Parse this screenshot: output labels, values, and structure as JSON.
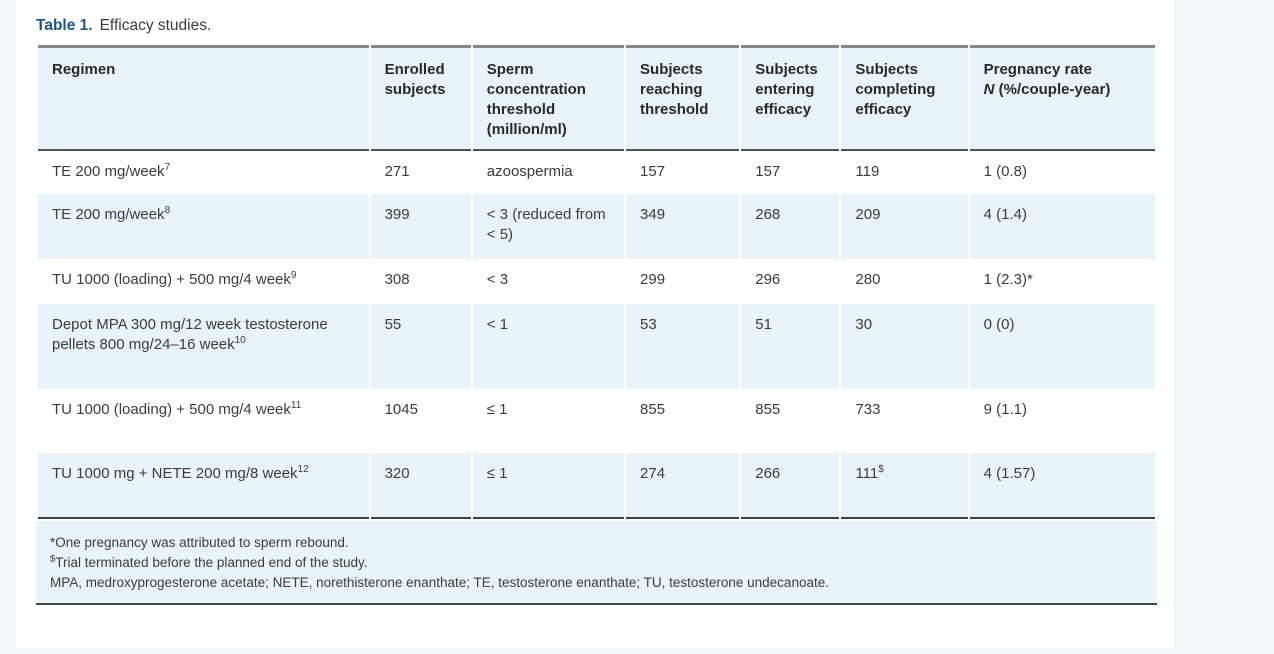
{
  "title": {
    "label": "Table 1.",
    "text": "Efficacy studies."
  },
  "table": {
    "headers": {
      "regimen": "Regimen",
      "enrolled": "Enrolled subjects",
      "threshold": "Sperm concentration threshold (million/ml)",
      "reaching": "Subjects reaching threshold",
      "entering": "Subjects entering efficacy",
      "completing": "Subjects completing efficacy",
      "pregnancy_line1": "Pregnancy rate",
      "pregnancy_n": "N",
      "pregnancy_rest": " (%/couple-year)"
    },
    "rows": [
      {
        "regimen": "TE 200 mg/week",
        "regimen_sup": "7",
        "enrolled": "271",
        "threshold": "azoospermia",
        "reaching": "157",
        "entering": "157",
        "completing": "119",
        "completing_sup": "",
        "pregnancy": "1 (0.8)"
      },
      {
        "regimen": "TE 200 mg/week",
        "regimen_sup": "8",
        "enrolled": "399",
        "threshold": "< 3 (reduced from < 5)",
        "reaching": "349",
        "entering": "268",
        "completing": "209",
        "completing_sup": "",
        "pregnancy": "4 (1.4)"
      },
      {
        "regimen": "TU 1000 (loading) + 500 mg/4 week",
        "regimen_sup": "9",
        "enrolled": "308",
        "threshold": "< 3",
        "reaching": "299",
        "entering": "296",
        "completing": "280",
        "completing_sup": "",
        "pregnancy": "1 (2.3)*"
      },
      {
        "regimen": "Depot MPA 300 mg/12 week testosterone pellets 800 mg/24–16 week",
        "regimen_sup": "10",
        "enrolled": "55",
        "threshold": "< 1",
        "reaching": "53",
        "entering": "51",
        "completing": "30",
        "completing_sup": "",
        "pregnancy": "0 (0)"
      },
      {
        "regimen": "TU 1000 (loading) + 500 mg/4 week",
        "regimen_sup": "11",
        "enrolled": "1045",
        "threshold": "≤ 1",
        "reaching": "855",
        "entering": "855",
        "completing": "733",
        "completing_sup": "",
        "pregnancy": "9 (1.1)"
      },
      {
        "regimen": "TU 1000 mg + NETE 200 mg/8 week",
        "regimen_sup": "12",
        "enrolled": "320",
        "threshold": "≤ 1",
        "reaching": "274",
        "entering": "266",
        "completing": "111",
        "completing_sup": "$",
        "pregnancy": "4 (1.57)"
      }
    ],
    "footnotes": [
      {
        "marker": "*",
        "marker_superscript": false,
        "text": "One pregnancy was attributed to sperm rebound."
      },
      {
        "marker": "$",
        "marker_superscript": true,
        "text": "Trial terminated before the planned end of the study."
      },
      {
        "marker": "",
        "marker_superscript": false,
        "text": "MPA, medroxyprogesterone acetate; NETE, norethisterone enanthate; TE, testosterone enanthate; TU, testosterone undecanoate."
      }
    ]
  },
  "colors": {
    "caption_accent": "#1f5382",
    "row_stripe": "#e9f3fa",
    "body_text": "#3a3c3e",
    "page_background": "#ffffff",
    "outer_background": "#f5f6f7"
  }
}
